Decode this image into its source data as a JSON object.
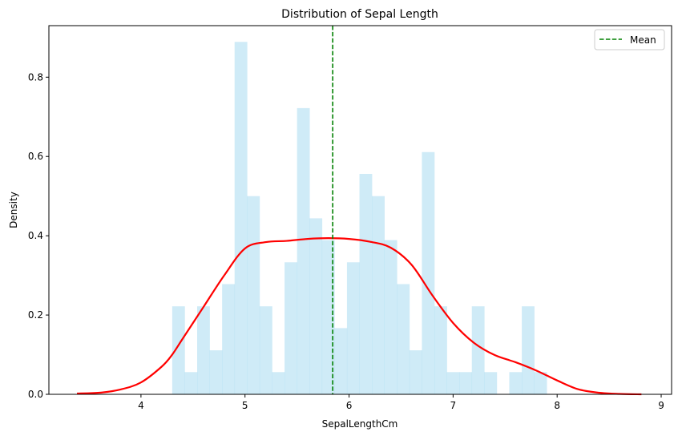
{
  "chart_data": {
    "type": "bar",
    "title": "Distribution of Sepal Length",
    "xlabel": "SepalLengthCm",
    "ylabel": "Density",
    "xlim": [
      3.115,
      9.1
    ],
    "ylim": [
      0,
      0.93
    ],
    "xticks": [
      4,
      5,
      6,
      7,
      8,
      9
    ],
    "xtick_labels": [
      "4",
      "5",
      "6",
      "7",
      "8",
      "9"
    ],
    "yticks": [
      0.0,
      0.2,
      0.4,
      0.6,
      0.8
    ],
    "ytick_labels": [
      "0.0",
      "0.2",
      "0.4",
      "0.6",
      "0.8"
    ],
    "grid": false,
    "histogram": {
      "bin_start": 4.3,
      "bin_width": 0.12,
      "color": "#87CEEB",
      "opacity": 0.4,
      "densities": [
        0.222,
        0.056,
        0.222,
        0.111,
        0.278,
        0.889,
        0.5,
        0.222,
        0.056,
        0.333,
        0.722,
        0.444,
        0.389,
        0.167,
        0.333,
        0.556,
        0.5,
        0.389,
        0.278,
        0.111,
        0.611,
        0.222,
        0.056,
        0.056,
        0.222,
        0.056,
        0,
        0.056,
        0.222,
        0.056
      ]
    },
    "kde": {
      "color": "#ff0000",
      "x": [
        3.385,
        3.6,
        3.8,
        4.0,
        4.2,
        4.3,
        4.4,
        4.6,
        4.8,
        5.0,
        5.2,
        5.4,
        5.6,
        5.8,
        6.0,
        6.2,
        6.4,
        6.6,
        6.8,
        7.0,
        7.2,
        7.4,
        7.6,
        7.8,
        8.0,
        8.2,
        8.4,
        8.6,
        8.81
      ],
      "y": [
        0.002,
        0.004,
        0.012,
        0.03,
        0.07,
        0.1,
        0.14,
        0.22,
        0.3,
        0.368,
        0.384,
        0.387,
        0.392,
        0.394,
        0.392,
        0.385,
        0.37,
        0.327,
        0.25,
        0.18,
        0.13,
        0.099,
        0.081,
        0.06,
        0.035,
        0.013,
        0.004,
        0.001,
        0.0
      ]
    },
    "mean_line": {
      "value": 5.843,
      "color": "#008000",
      "label": "Mean"
    },
    "legend": {
      "placement": "top-right",
      "entries": [
        "Mean"
      ]
    }
  }
}
